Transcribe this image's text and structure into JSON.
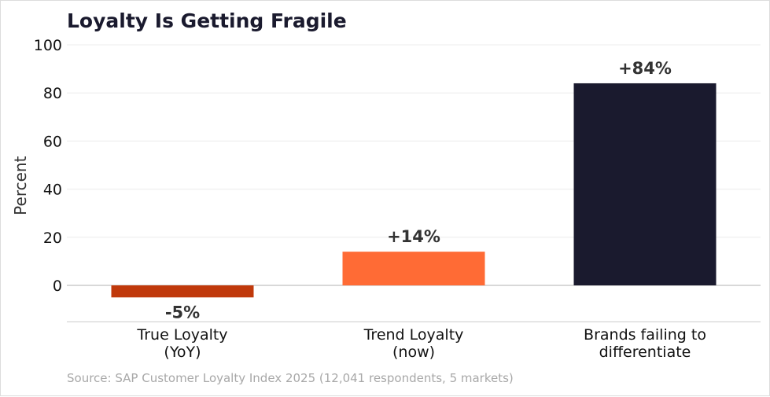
{
  "chart_data": {
    "type": "bar",
    "title": "Loyalty Is Getting Fragile",
    "ylabel": "Percent",
    "xlabel": "",
    "categories": [
      [
        "True Loyalty",
        "(YoY)"
      ],
      [
        "Trend Loyalty",
        "(now)"
      ],
      [
        "Brands failing to",
        "differentiate"
      ]
    ],
    "values": [
      -5,
      14,
      84
    ],
    "data_labels": [
      "-5%",
      "+14%",
      "+84%"
    ],
    "colors": [
      "#c0390b",
      "#ff6b35",
      "#1a1a2e"
    ],
    "yticks": [
      0,
      20,
      40,
      60,
      80,
      100
    ],
    "ylim": [
      -15,
      100
    ],
    "grid": true,
    "legend": "none"
  },
  "footer": {
    "source": "Source: SAP Customer Loyalty Index 2025 (12,041 respondents, 5 markets)"
  }
}
